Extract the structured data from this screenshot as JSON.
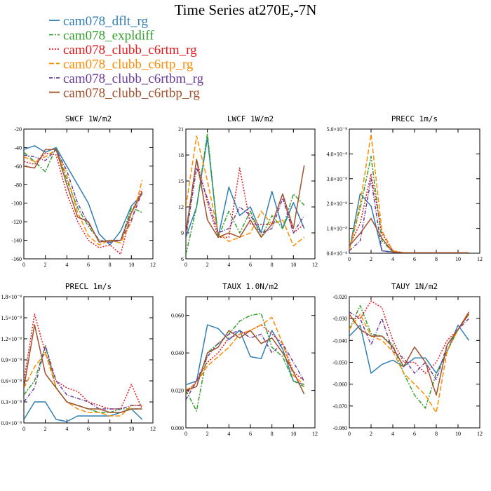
{
  "title": "Time Series at270E,-7N",
  "legend": [
    {
      "label": "cam078_dflt_rg",
      "color": "#2f7fb5",
      "dash": ""
    },
    {
      "label": "cam078_expldiff",
      "color": "#33a02c",
      "dash": "6,2,2,2"
    },
    {
      "label": "cam078_clubb_c6rtm_rg",
      "color": "#e31a1c",
      "dash": "2,2"
    },
    {
      "label": "cam078_clubb_c6rtp_rg",
      "color": "#ff8c00",
      "dash": "7,3"
    },
    {
      "label": "cam078_clubb_c6rtbm_rg",
      "color": "#6a3d9a",
      "dash": "5,2,1,2"
    },
    {
      "label": "cam078_clubb_c6rtbp_rg",
      "color": "#a0522d",
      "dash": ""
    }
  ],
  "chart_data": [
    {
      "type": "line",
      "title": "SWCF  1W/m2",
      "x": [
        0,
        1,
        2,
        3,
        4,
        5,
        6,
        7,
        8,
        9,
        10,
        11
      ],
      "xlim": [
        0,
        12
      ],
      "ylim": [
        -160,
        -20
      ],
      "yticks": [
        "-20",
        "-40",
        "-60",
        "-80",
        "-100",
        "-120",
        "-140",
        "-160"
      ],
      "ytick_values": [
        -20,
        -40,
        -60,
        -80,
        -100,
        -120,
        -140,
        -160
      ],
      "xticks": [
        "0",
        "2",
        "4",
        "6",
        "8",
        "10",
        "12"
      ],
      "xtick_values": [
        0,
        2,
        4,
        6,
        8,
        10,
        12
      ],
      "series": [
        {
          "name": "cam078_dflt_rg",
          "values": [
            -42,
            -38,
            -45,
            -40,
            -60,
            -80,
            -100,
            -133,
            -145,
            -130,
            -103,
            -90
          ]
        },
        {
          "name": "cam078_expldiff",
          "values": [
            -45,
            -55,
            -66,
            -40,
            -75,
            -105,
            -125,
            -140,
            -142,
            -140,
            -105,
            -110
          ]
        },
        {
          "name": "cam078_clubb_c6rtm_rg",
          "values": [
            -55,
            -58,
            -46,
            -48,
            -90,
            -120,
            -140,
            -148,
            -145,
            -155,
            -110,
            -85
          ]
        },
        {
          "name": "cam078_clubb_c6rtp_rg",
          "values": [
            -50,
            -55,
            -50,
            -42,
            -70,
            -110,
            -135,
            -145,
            -140,
            -143,
            -120,
            -75
          ]
        },
        {
          "name": "cam078_clubb_c6rtbm_rg",
          "values": [
            -48,
            -50,
            -54,
            -42,
            -65,
            -100,
            -122,
            -140,
            -142,
            -140,
            -118,
            -88
          ]
        },
        {
          "name": "cam078_clubb_c6rtbp_rg",
          "values": [
            -60,
            -62,
            -42,
            -42,
            -80,
            -115,
            -120,
            -142,
            -140,
            -140,
            -110,
            -88
          ]
        }
      ]
    },
    {
      "type": "line",
      "title": "LWCF  1W/m2",
      "x": [
        0,
        1,
        2,
        3,
        4,
        5,
        6,
        7,
        8,
        9,
        10,
        11
      ],
      "xlim": [
        0,
        12
      ],
      "ylim": [
        6,
        21
      ],
      "yticks": [
        "21",
        "18",
        "15",
        "12",
        "9",
        "6"
      ],
      "ytick_values": [
        21,
        18,
        15,
        12,
        9,
        6
      ],
      "xticks": [
        "0",
        "2",
        "4",
        "6",
        "8",
        "10",
        "12"
      ],
      "xtick_values": [
        0,
        2,
        4,
        6,
        8,
        10,
        12
      ],
      "series": [
        {
          "name": "cam078_dflt_rg",
          "values": [
            8.5,
            12,
            20,
            8.5,
            14.3,
            11,
            12,
            9,
            13.8,
            9.5,
            12.5,
            9.5
          ]
        },
        {
          "name": "cam078_expldiff",
          "values": [
            6.5,
            12,
            20.5,
            8.5,
            11.5,
            9,
            11.5,
            8.5,
            11,
            9.5,
            13.5,
            12.2
          ]
        },
        {
          "name": "cam078_clubb_c6rtm_rg",
          "values": [
            9,
            17.5,
            12.5,
            8.5,
            8.5,
            16.5,
            10,
            10,
            10,
            13.5,
            9,
            10
          ]
        },
        {
          "name": "cam078_clubb_c6rtp_rg",
          "values": [
            12,
            20.2,
            15,
            9,
            8,
            8.5,
            9,
            11.5,
            10,
            10.5,
            7.5,
            8.5
          ]
        },
        {
          "name": "cam078_clubb_c6rtbm_rg",
          "values": [
            8.5,
            16.5,
            13,
            9,
            9.5,
            12,
            11,
            9,
            9.5,
            13,
            9,
            11
          ]
        },
        {
          "name": "cam078_clubb_c6rtbp_rg",
          "values": [
            9,
            17.5,
            10.5,
            8.5,
            9,
            8.5,
            10.5,
            8.5,
            10,
            13.5,
            9.5,
            16.8
          ]
        }
      ]
    },
    {
      "type": "line",
      "title": "PRECC  1m/s",
      "x": [
        0,
        1,
        2,
        3,
        4,
        5,
        6,
        7,
        8,
        9,
        10,
        11
      ],
      "xlim": [
        0,
        12
      ],
      "ylim": [
        0,
        5
      ],
      "yticks": [
        "5.0×10⁻⁸",
        "4.0×10⁻⁸",
        "3.0×10⁻⁸",
        "2.0×10⁻⁸",
        "1.0×10⁻⁸",
        "0.0×10⁻⁸"
      ],
      "ytick_values": [
        5,
        4,
        3,
        2,
        1,
        0
      ],
      "xticks": [
        "0",
        "2",
        "4",
        "6",
        "8",
        "10",
        "12"
      ],
      "xtick_values": [
        0,
        2,
        4,
        6,
        8,
        10,
        12
      ],
      "series": [
        {
          "name": "cam078_dflt_rg",
          "values": [
            0.1,
            2.4,
            1.9,
            0.1,
            0.05,
            0.02,
            0.02,
            0.02,
            0.02,
            0.02,
            0.02,
            0.02
          ]
        },
        {
          "name": "cam078_expldiff",
          "values": [
            0.2,
            1.8,
            3.9,
            0.5,
            0.05,
            0.02,
            0.02,
            0.02,
            0.02,
            0.02,
            0.02,
            0.02
          ]
        },
        {
          "name": "cam078_clubb_c6rtm_rg",
          "values": [
            0.3,
            1.2,
            3.2,
            0.8,
            0.1,
            0.02,
            0.02,
            0.02,
            0.02,
            0.02,
            0.02,
            0.02
          ]
        },
        {
          "name": "cam078_clubb_c6rtp_rg",
          "values": [
            0.1,
            2,
            4.8,
            0.9,
            0.1,
            0.02,
            0.02,
            0.02,
            0.02,
            0.02,
            0.02,
            0.02
          ]
        },
        {
          "name": "cam078_clubb_c6rtbm_rg",
          "values": [
            0.1,
            0.5,
            3.0,
            0.1,
            0.03,
            0.02,
            0.02,
            0.02,
            0.02,
            0.02,
            0.02,
            0.02
          ]
        },
        {
          "name": "cam078_clubb_c6rtbp_rg",
          "values": [
            0.3,
            0.8,
            1.4,
            0.6,
            0.05,
            0.02,
            0.02,
            0.02,
            0.02,
            0.02,
            0.02,
            0.02
          ]
        }
      ]
    },
    {
      "type": "line",
      "title": "PRECL  1m/s",
      "x": [
        0,
        1,
        2,
        3,
        4,
        5,
        6,
        7,
        8,
        9,
        10,
        11
      ],
      "xlim": [
        0,
        12
      ],
      "ylim": [
        0,
        1.8
      ],
      "yticks": [
        "1.8×10⁻⁸",
        "1.5×10⁻⁸",
        "1.2×10⁻⁸",
        "0.9×10⁻⁸",
        "0.6×10⁻⁸",
        "0.3×10⁻⁸",
        "0.0×10⁻⁸"
      ],
      "ytick_values": [
        1.8,
        1.5,
        1.2,
        0.9,
        0.6,
        0.3,
        0
      ],
      "xticks": [
        "0",
        "2",
        "4",
        "6",
        "8",
        "10",
        "12"
      ],
      "xtick_values": [
        0,
        2,
        4,
        6,
        8,
        10,
        12
      ],
      "series": [
        {
          "name": "cam078_dflt_rg",
          "values": [
            0.05,
            0.3,
            0.3,
            0.05,
            0.02,
            0.1,
            0.1,
            0.1,
            0.1,
            0.15,
            0.2,
            0.05
          ]
        },
        {
          "name": "cam078_expldiff",
          "values": [
            0.4,
            0.6,
            1.1,
            0.5,
            0.3,
            0.25,
            0.2,
            0.15,
            0.15,
            0.2,
            0.2,
            0.2
          ]
        },
        {
          "name": "cam078_clubb_c6rtm_rg",
          "values": [
            0.6,
            1.55,
            1.0,
            0.6,
            0.5,
            0.45,
            0.3,
            0.25,
            0.2,
            0.2,
            0.55,
            0.2
          ]
        },
        {
          "name": "cam078_clubb_c6rtp_rg",
          "values": [
            0.5,
            0.8,
            1.0,
            0.5,
            0.3,
            0.2,
            0.15,
            0.15,
            0.1,
            0.1,
            0.25,
            0.25
          ]
        },
        {
          "name": "cam078_clubb_c6rtbm_rg",
          "values": [
            0.3,
            0.5,
            1.1,
            0.6,
            0.4,
            0.35,
            0.3,
            0.2,
            0.2,
            0.2,
            0.25,
            0.25
          ]
        },
        {
          "name": "cam078_clubb_c6rtbp_rg",
          "values": [
            0.5,
            1.4,
            0.7,
            0.5,
            0.3,
            0.25,
            0.2,
            0.2,
            0.15,
            0.15,
            0.2,
            0.2
          ]
        }
      ]
    },
    {
      "type": "line",
      "title": "TAUX  1.0N/m2",
      "x": [
        0,
        1,
        2,
        3,
        4,
        5,
        6,
        7,
        8,
        9,
        10,
        11
      ],
      "xlim": [
        0,
        12
      ],
      "ylim": [
        0,
        0.07
      ],
      "yticks": [
        "0.060",
        "0.040",
        "0.020",
        "0.000"
      ],
      "ytick_values": [
        0.06,
        0.04,
        0.02,
        0
      ],
      "xticks": [
        "0",
        "2",
        "4",
        "6",
        "8",
        "10",
        "12"
      ],
      "xtick_values": [
        0,
        2,
        4,
        6,
        8,
        10,
        12
      ],
      "series": [
        {
          "name": "cam078_dflt_rg",
          "values": [
            0.023,
            0.025,
            0.055,
            0.053,
            0.047,
            0.052,
            0.038,
            0.037,
            0.052,
            0.042,
            0.025,
            0.023
          ]
        },
        {
          "name": "cam078_expldiff",
          "values": [
            0.02,
            0.009,
            0.04,
            0.045,
            0.05,
            0.057,
            0.06,
            0.061,
            0.043,
            0.038,
            0.025,
            0.022
          ]
        },
        {
          "name": "cam078_clubb_c6rtm_rg",
          "values": [
            0.018,
            0.025,
            0.035,
            0.04,
            0.048,
            0.05,
            0.052,
            0.055,
            0.05,
            0.045,
            0.03,
            0.025
          ]
        },
        {
          "name": "cam078_clubb_c6rtp_rg",
          "values": [
            0.02,
            0.024,
            0.033,
            0.038,
            0.043,
            0.05,
            0.052,
            0.055,
            0.059,
            0.045,
            0.028,
            0.023
          ]
        },
        {
          "name": "cam078_clubb_c6rtbm_rg",
          "values": [
            0.015,
            0.025,
            0.038,
            0.045,
            0.05,
            0.052,
            0.048,
            0.05,
            0.04,
            0.045,
            0.035,
            0.025
          ]
        },
        {
          "name": "cam078_clubb_c6rtbp_rg",
          "values": [
            0.02,
            0.022,
            0.04,
            0.043,
            0.052,
            0.048,
            0.052,
            0.045,
            0.048,
            0.04,
            0.03,
            0.018
          ]
        }
      ]
    },
    {
      "type": "line",
      "title": "TAUY  1N/m2",
      "x": [
        0,
        1,
        2,
        3,
        4,
        5,
        6,
        7,
        8,
        9,
        10,
        11
      ],
      "xlim": [
        0,
        12
      ],
      "ylim": [
        -0.08,
        -0.02
      ],
      "yticks": [
        "-0.020",
        "-0.030",
        "-0.040",
        "-0.050",
        "-0.060",
        "-0.070",
        "-0.080"
      ],
      "ytick_values": [
        -0.02,
        -0.03,
        -0.04,
        -0.05,
        -0.06,
        -0.07,
        -0.08
      ],
      "xticks": [
        "0",
        "2",
        "4",
        "6",
        "8",
        "10",
        "12"
      ],
      "xtick_values": [
        0,
        2,
        4,
        6,
        8,
        10,
        12
      ],
      "series": [
        {
          "name": "cam078_dflt_rg",
          "values": [
            -0.038,
            -0.033,
            -0.055,
            -0.051,
            -0.049,
            -0.052,
            -0.048,
            -0.048,
            -0.055,
            -0.045,
            -0.033,
            -0.04
          ]
        },
        {
          "name": "cam078_expldiff",
          "values": [
            -0.035,
            -0.024,
            -0.037,
            -0.038,
            -0.042,
            -0.055,
            -0.065,
            -0.071,
            -0.055,
            -0.045,
            -0.035,
            -0.028
          ]
        },
        {
          "name": "cam078_clubb_c6rtm_rg",
          "values": [
            -0.03,
            -0.03,
            -0.022,
            -0.025,
            -0.04,
            -0.05,
            -0.05,
            -0.055,
            -0.05,
            -0.04,
            -0.035,
            -0.028
          ]
        },
        {
          "name": "cam078_clubb_c6rtp_rg",
          "values": [
            -0.035,
            -0.028,
            -0.038,
            -0.04,
            -0.045,
            -0.055,
            -0.06,
            -0.065,
            -0.073,
            -0.045,
            -0.035,
            -0.027
          ]
        },
        {
          "name": "cam078_clubb_c6rtbm_rg",
          "values": [
            -0.027,
            -0.03,
            -0.042,
            -0.03,
            -0.045,
            -0.048,
            -0.055,
            -0.05,
            -0.058,
            -0.042,
            -0.035,
            -0.03
          ]
        },
        {
          "name": "cam078_clubb_c6rtbp_rg",
          "values": [
            -0.028,
            -0.035,
            -0.038,
            -0.038,
            -0.043,
            -0.052,
            -0.043,
            -0.05,
            -0.065,
            -0.042,
            -0.035,
            -0.027
          ]
        }
      ]
    }
  ]
}
